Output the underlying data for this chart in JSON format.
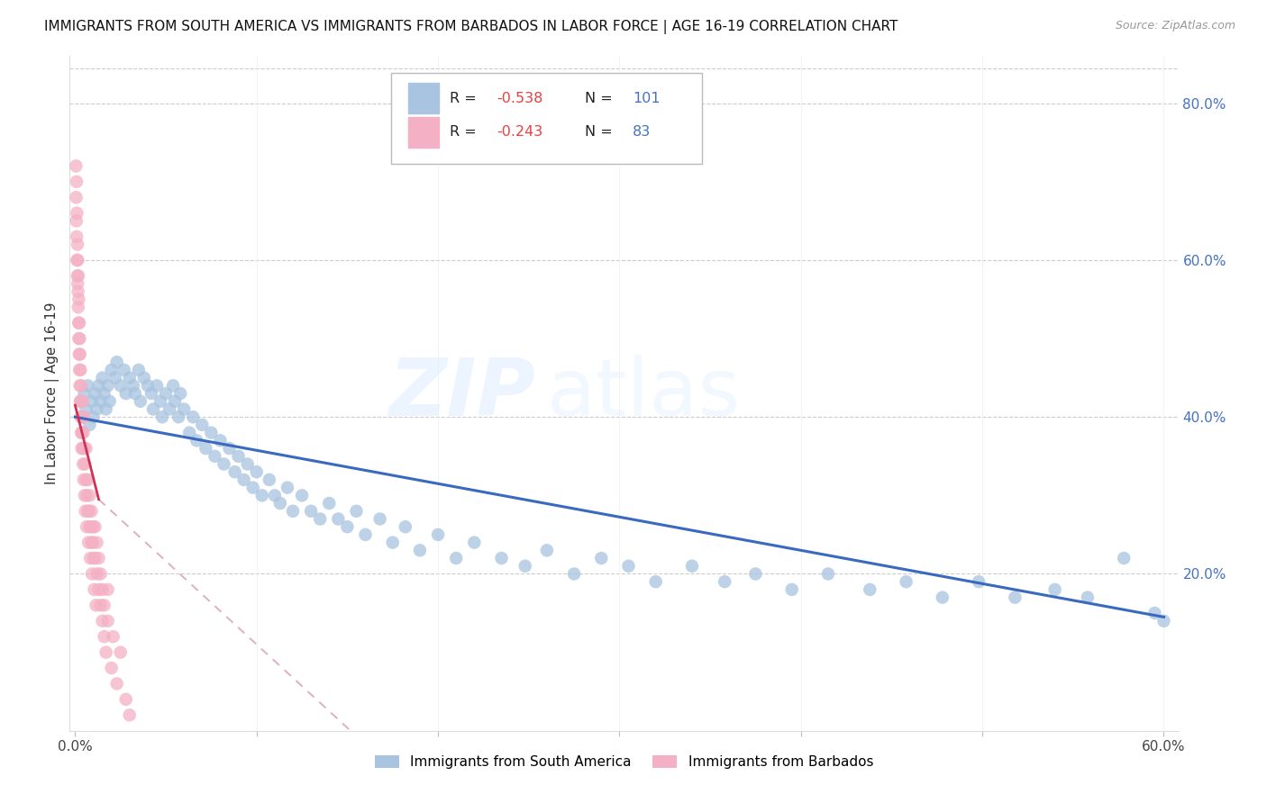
{
  "title": "IMMIGRANTS FROM SOUTH AMERICA VS IMMIGRANTS FROM BARBADOS IN LABOR FORCE | AGE 16-19 CORRELATION CHART",
  "source": "Source: ZipAtlas.com",
  "ylabel": "In Labor Force | Age 16-19",
  "xlim": [
    0.0,
    0.6
  ],
  "ylim": [
    0.0,
    0.86
  ],
  "color_blue": "#a8c4e0",
  "color_pink": "#f4b0c4",
  "line_color_blue": "#3a6abf",
  "line_color_pink": "#cc3355",
  "line_color_pink_dash": "#ddb0c0",
  "watermark_zip": "ZIP",
  "watermark_atlas": "atlas",
  "sa_x": [
    0.003,
    0.004,
    0.005,
    0.006,
    0.007,
    0.008,
    0.009,
    0.01,
    0.011,
    0.012,
    0.013,
    0.014,
    0.015,
    0.016,
    0.017,
    0.018,
    0.019,
    0.02,
    0.022,
    0.023,
    0.025,
    0.027,
    0.028,
    0.03,
    0.032,
    0.033,
    0.035,
    0.036,
    0.038,
    0.04,
    0.042,
    0.043,
    0.045,
    0.047,
    0.048,
    0.05,
    0.052,
    0.054,
    0.055,
    0.057,
    0.058,
    0.06,
    0.063,
    0.065,
    0.067,
    0.07,
    0.072,
    0.075,
    0.077,
    0.08,
    0.082,
    0.085,
    0.088,
    0.09,
    0.093,
    0.095,
    0.098,
    0.1,
    0.103,
    0.107,
    0.11,
    0.113,
    0.117,
    0.12,
    0.125,
    0.13,
    0.135,
    0.14,
    0.145,
    0.15,
    0.155,
    0.16,
    0.168,
    0.175,
    0.182,
    0.19,
    0.2,
    0.21,
    0.22,
    0.235,
    0.248,
    0.26,
    0.275,
    0.29,
    0.305,
    0.32,
    0.34,
    0.358,
    0.375,
    0.395,
    0.415,
    0.438,
    0.458,
    0.478,
    0.498,
    0.518,
    0.54,
    0.558,
    0.578,
    0.595,
    0.6
  ],
  "sa_y": [
    0.42,
    0.4,
    0.43,
    0.41,
    0.44,
    0.39,
    0.42,
    0.4,
    0.43,
    0.41,
    0.44,
    0.42,
    0.45,
    0.43,
    0.41,
    0.44,
    0.42,
    0.46,
    0.45,
    0.47,
    0.44,
    0.46,
    0.43,
    0.45,
    0.44,
    0.43,
    0.46,
    0.42,
    0.45,
    0.44,
    0.43,
    0.41,
    0.44,
    0.42,
    0.4,
    0.43,
    0.41,
    0.44,
    0.42,
    0.4,
    0.43,
    0.41,
    0.38,
    0.4,
    0.37,
    0.39,
    0.36,
    0.38,
    0.35,
    0.37,
    0.34,
    0.36,
    0.33,
    0.35,
    0.32,
    0.34,
    0.31,
    0.33,
    0.3,
    0.32,
    0.3,
    0.29,
    0.31,
    0.28,
    0.3,
    0.28,
    0.27,
    0.29,
    0.27,
    0.26,
    0.28,
    0.25,
    0.27,
    0.24,
    0.26,
    0.23,
    0.25,
    0.22,
    0.24,
    0.22,
    0.21,
    0.23,
    0.2,
    0.22,
    0.21,
    0.19,
    0.21,
    0.19,
    0.2,
    0.18,
    0.2,
    0.18,
    0.19,
    0.17,
    0.19,
    0.17,
    0.18,
    0.17,
    0.22,
    0.15,
    0.14
  ],
  "barb_x": [
    0.0005,
    0.0006,
    0.0007,
    0.0008,
    0.0009,
    0.001,
    0.001,
    0.0012,
    0.0013,
    0.0014,
    0.0015,
    0.0016,
    0.0017,
    0.0018,
    0.0019,
    0.002,
    0.002,
    0.0022,
    0.0023,
    0.0024,
    0.0025,
    0.0026,
    0.0027,
    0.0028,
    0.003,
    0.003,
    0.0032,
    0.0033,
    0.0035,
    0.0036,
    0.0038,
    0.004,
    0.004,
    0.0042,
    0.0044,
    0.0045,
    0.0047,
    0.005,
    0.005,
    0.0052,
    0.0054,
    0.0056,
    0.006,
    0.006,
    0.0063,
    0.0065,
    0.007,
    0.007,
    0.0073,
    0.0076,
    0.008,
    0.008,
    0.0083,
    0.0086,
    0.009,
    0.009,
    0.0093,
    0.0097,
    0.01,
    0.01,
    0.0105,
    0.011,
    0.011,
    0.0115,
    0.012,
    0.012,
    0.013,
    0.013,
    0.014,
    0.014,
    0.015,
    0.015,
    0.016,
    0.016,
    0.017,
    0.018,
    0.018,
    0.02,
    0.021,
    0.023,
    0.025,
    0.028,
    0.03
  ],
  "barb_y": [
    0.72,
    0.68,
    0.65,
    0.7,
    0.63,
    0.6,
    0.66,
    0.58,
    0.62,
    0.57,
    0.6,
    0.56,
    0.54,
    0.58,
    0.52,
    0.5,
    0.55,
    0.48,
    0.52,
    0.46,
    0.5,
    0.44,
    0.48,
    0.42,
    0.46,
    0.4,
    0.44,
    0.38,
    0.42,
    0.36,
    0.4,
    0.38,
    0.42,
    0.36,
    0.34,
    0.38,
    0.32,
    0.36,
    0.4,
    0.3,
    0.34,
    0.28,
    0.32,
    0.36,
    0.26,
    0.3,
    0.28,
    0.32,
    0.24,
    0.28,
    0.26,
    0.3,
    0.22,
    0.26,
    0.24,
    0.28,
    0.2,
    0.24,
    0.22,
    0.26,
    0.18,
    0.22,
    0.26,
    0.16,
    0.2,
    0.24,
    0.18,
    0.22,
    0.16,
    0.2,
    0.14,
    0.18,
    0.12,
    0.16,
    0.1,
    0.14,
    0.18,
    0.08,
    0.12,
    0.06,
    0.1,
    0.04,
    0.02
  ],
  "blue_line": [
    [
      0.0,
      0.4
    ],
    [
      0.6,
      0.145
    ]
  ],
  "pink_solid_line": [
    [
      0.0,
      0.415
    ],
    [
      0.013,
      0.295
    ]
  ],
  "pink_dash_line": [
    [
      0.013,
      0.295
    ],
    [
      0.18,
      -0.06
    ]
  ]
}
